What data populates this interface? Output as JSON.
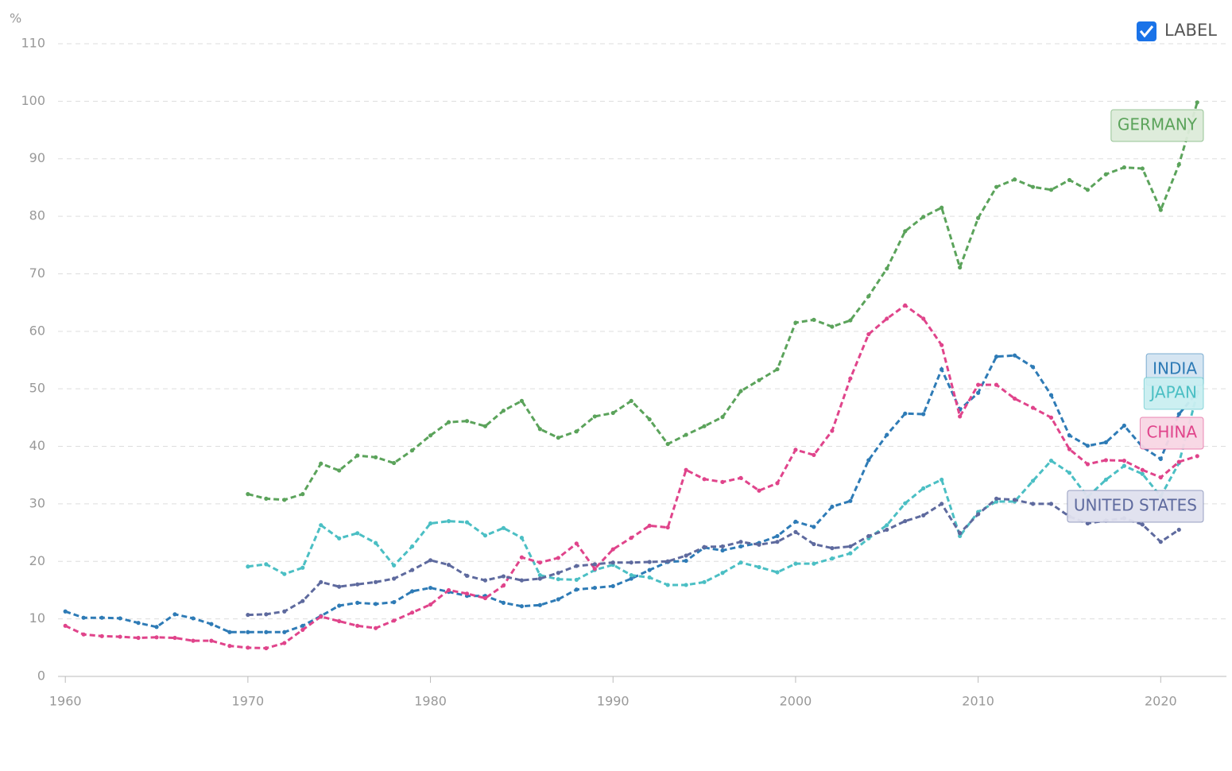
{
  "chart_data": {
    "type": "line",
    "ylabel": "%",
    "label_toggle": "LABEL",
    "x": [
      1960,
      1961,
      1962,
      1963,
      1964,
      1965,
      1966,
      1967,
      1968,
      1969,
      1970,
      1971,
      1972,
      1973,
      1974,
      1975,
      1976,
      1977,
      1978,
      1979,
      1980,
      1981,
      1982,
      1983,
      1984,
      1985,
      1986,
      1987,
      1988,
      1989,
      1990,
      1991,
      1992,
      1993,
      1994,
      1995,
      1996,
      1997,
      1998,
      1999,
      2000,
      2001,
      2002,
      2003,
      2004,
      2005,
      2006,
      2007,
      2008,
      2009,
      2010,
      2011,
      2012,
      2013,
      2014,
      2015,
      2016,
      2017,
      2018,
      2019,
      2020,
      2021,
      2022
    ],
    "xlim": [
      1959.6,
      2023.6
    ],
    "xticks": [
      1960,
      1970,
      1980,
      1990,
      2000,
      2010,
      2020
    ],
    "ylim": [
      0,
      110
    ],
    "yticks": [
      0,
      10,
      20,
      30,
      40,
      50,
      60,
      70,
      80,
      90,
      100,
      110
    ],
    "grid": true,
    "series": [
      {
        "name": "GERMANY",
        "color": "#5ba35b",
        "values": [
          null,
          null,
          null,
          null,
          null,
          null,
          null,
          null,
          null,
          null,
          31.7,
          30.9,
          30.7,
          31.7,
          37.0,
          35.8,
          38.4,
          38.1,
          37.1,
          39.3,
          41.9,
          44.2,
          44.4,
          43.5,
          46.2,
          47.9,
          43.0,
          41.5,
          42.6,
          45.2,
          45.8,
          47.9,
          44.7,
          40.4,
          42.0,
          43.5,
          45.1,
          49.6,
          51.5,
          53.4,
          61.5,
          62.0,
          60.8,
          61.9,
          66.1,
          70.9,
          77.4,
          79.9,
          81.5,
          71.1,
          79.7,
          85.1,
          86.4,
          85.1,
          84.6,
          86.3,
          84.6,
          87.3,
          88.5,
          88.3,
          81.1,
          89.0,
          99.8
        ]
      },
      {
        "name": "INDIA",
        "color": "#2e7bb6",
        "values": [
          11.3,
          10.2,
          10.2,
          10.1,
          9.3,
          8.6,
          10.8,
          10.1,
          9.1,
          7.7,
          7.7,
          7.7,
          7.7,
          8.8,
          10.5,
          12.3,
          12.8,
          12.6,
          12.9,
          14.8,
          15.4,
          14.7,
          14.0,
          14.0,
          12.8,
          12.2,
          12.4,
          13.4,
          15.1,
          15.4,
          15.7,
          17.0,
          18.5,
          19.9,
          20.1,
          22.4,
          21.9,
          22.6,
          23.2,
          24.4,
          26.9,
          26.0,
          29.5,
          30.5,
          37.6,
          42.0,
          45.7,
          45.6,
          53.4,
          46.4,
          49.3,
          55.6,
          55.8,
          53.8,
          48.9,
          41.9,
          40.1,
          40.7,
          43.6,
          39.9,
          37.8,
          45.6,
          49.4
        ]
      },
      {
        "name": "JAPAN",
        "color": "#4bbfc4",
        "values": [
          null,
          null,
          null,
          null,
          null,
          null,
          null,
          null,
          null,
          null,
          19.1,
          19.5,
          17.8,
          18.9,
          26.3,
          24.0,
          24.9,
          23.2,
          19.3,
          22.6,
          26.6,
          27.0,
          26.8,
          24.5,
          25.8,
          24.1,
          17.6,
          16.9,
          16.8,
          18.5,
          19.4,
          17.6,
          17.2,
          15.9,
          15.9,
          16.4,
          18.0,
          19.8,
          19.0,
          18.1,
          19.6,
          19.6,
          20.5,
          21.4,
          24.0,
          26.3,
          30.1,
          32.7,
          34.2,
          24.4,
          28.6,
          30.4,
          30.4,
          34.0,
          37.5,
          35.4,
          31.2,
          34.2,
          36.6,
          35.2,
          31.3,
          37.1,
          49.2
        ]
      },
      {
        "name": "CHINA",
        "color": "#e0448b",
        "values": [
          8.8,
          7.3,
          7.0,
          6.9,
          6.7,
          6.8,
          6.7,
          6.2,
          6.2,
          5.3,
          5.0,
          4.9,
          5.8,
          8.1,
          10.4,
          9.6,
          8.8,
          8.4,
          9.7,
          11.1,
          12.5,
          15.0,
          14.4,
          13.6,
          15.8,
          20.7,
          19.8,
          20.6,
          23.1,
          18.7,
          22.1,
          24.1,
          26.2,
          25.9,
          35.9,
          34.3,
          33.8,
          34.5,
          32.3,
          33.6,
          39.4,
          38.5,
          42.7,
          51.8,
          59.5,
          62.2,
          64.5,
          62.2,
          57.6,
          45.2,
          50.7,
          50.7,
          48.3,
          46.7,
          45.0,
          39.5,
          36.9,
          37.6,
          37.5,
          35.9,
          34.6,
          37.3,
          38.3
        ]
      },
      {
        "name": "UNITED STATES",
        "color": "#5e6a9e",
        "values": [
          null,
          null,
          null,
          null,
          null,
          null,
          null,
          null,
          null,
          null,
          10.7,
          10.8,
          11.3,
          13.1,
          16.4,
          15.6,
          16.0,
          16.4,
          17.0,
          18.5,
          20.2,
          19.4,
          17.5,
          16.7,
          17.4,
          16.7,
          17.0,
          18.0,
          19.2,
          19.5,
          19.8,
          19.8,
          19.9,
          20.0,
          21.0,
          22.5,
          22.6,
          23.4,
          22.9,
          23.4,
          25.1,
          23.0,
          22.3,
          22.6,
          24.4,
          25.5,
          27.0,
          28.0,
          30.0,
          24.9,
          28.2,
          30.9,
          30.7,
          30.0,
          30.0,
          27.8,
          26.6,
          27.1,
          27.5,
          26.4,
          23.4,
          25.5,
          null
        ]
      }
    ]
  }
}
